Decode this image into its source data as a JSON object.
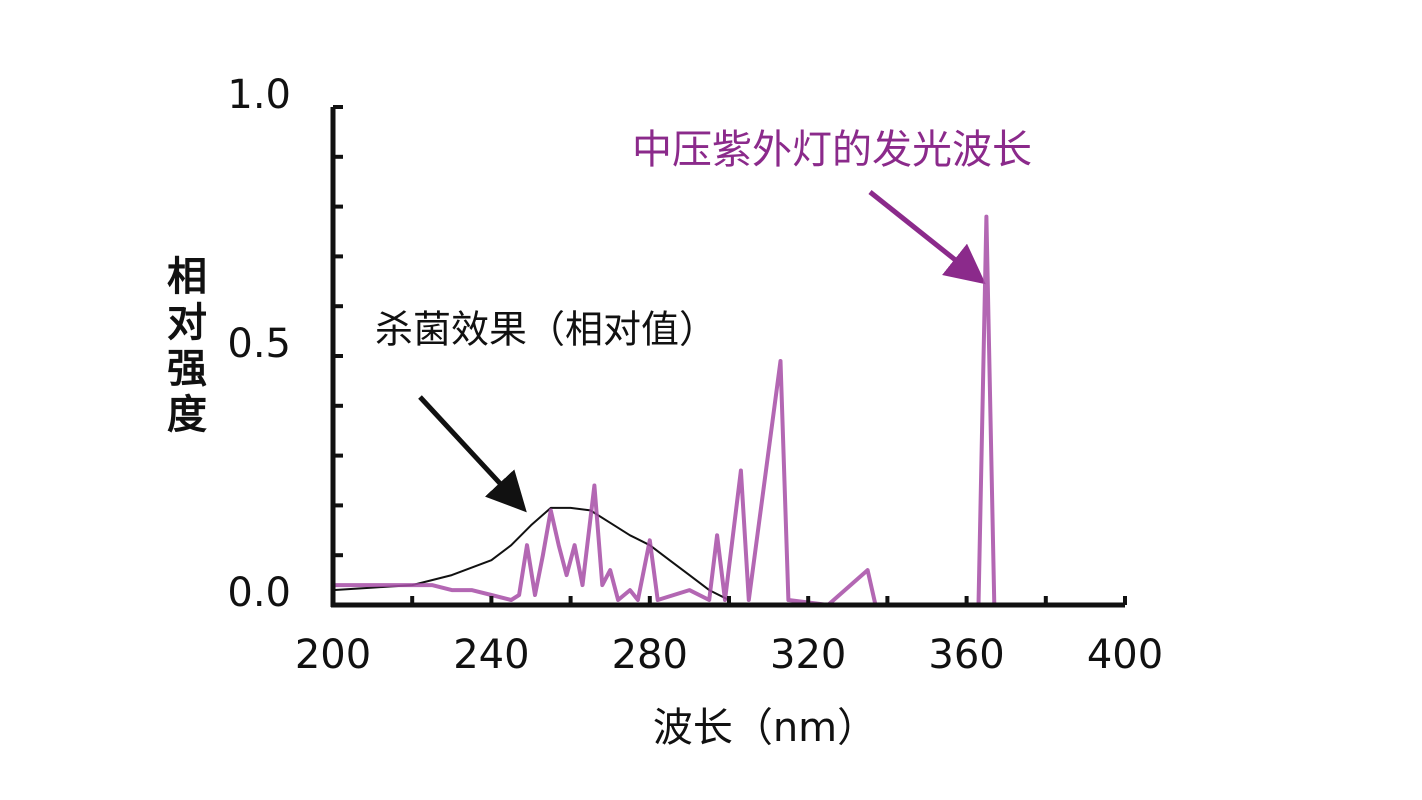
{
  "chart_data": {
    "type": "line",
    "xlabel": "波长（nm）",
    "ylabel": "相对强度",
    "xlim": [
      200,
      400
    ],
    "xticks": [
      200,
      240,
      280,
      320,
      360,
      400
    ],
    "xminorticks": [
      220,
      260,
      300,
      340,
      380
    ],
    "ylim": [
      0,
      1
    ],
    "yticks": [
      {
        "value": 0,
        "label": "0.0"
      },
      {
        "value": 0.5,
        "label": "0.5"
      },
      {
        "value": 1,
        "label": "1.0"
      }
    ],
    "yminorticks": [
      0.1,
      0.2,
      0.3,
      0.4,
      0.6,
      0.7,
      0.8,
      0.9
    ],
    "series": [
      {
        "name": "杀菌效果（相对值）",
        "color": "#111111",
        "x": [
          200,
          210,
          220,
          230,
          240,
          245,
          250,
          255,
          260,
          265,
          270,
          275,
          280,
          285,
          290,
          295,
          300
        ],
        "values": [
          0.03,
          0.035,
          0.04,
          0.06,
          0.09,
          0.12,
          0.16,
          0.195,
          0.195,
          0.19,
          0.165,
          0.14,
          0.12,
          0.09,
          0.06,
          0.03,
          0.01
        ]
      },
      {
        "name": "中压紫外灯的发光波长",
        "color": "#a64ca6",
        "x": [
          200,
          210,
          220,
          225,
          230,
          235,
          240,
          245,
          247,
          249,
          251,
          253,
          255,
          257,
          259,
          261,
          263,
          266,
          268,
          270,
          272,
          275,
          277,
          280,
          282,
          290,
          295,
          297,
          299,
          303,
          305,
          313,
          315,
          325,
          335,
          337,
          350,
          363,
          365,
          367,
          380
        ],
        "values": [
          0.04,
          0.04,
          0.04,
          0.04,
          0.03,
          0.03,
          0.02,
          0.01,
          0.02,
          0.12,
          0.02,
          0.1,
          0.19,
          0.12,
          0.06,
          0.12,
          0.04,
          0.24,
          0.04,
          0.07,
          0.01,
          0.03,
          0.01,
          0.13,
          0.01,
          0.03,
          0.01,
          0.14,
          0.01,
          0.27,
          0.01,
          0.49,
          0.01,
          0.0,
          0.07,
          0.0,
          0.0,
          0.0,
          0.78,
          0.0,
          0.0
        ]
      }
    ]
  }
}
